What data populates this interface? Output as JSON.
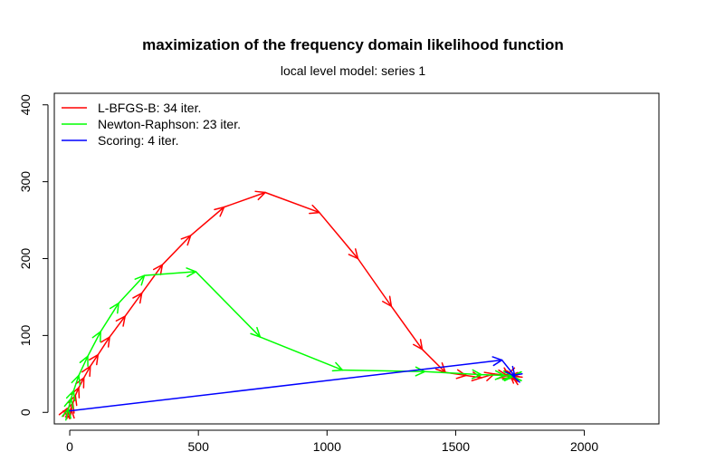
{
  "chart_data": {
    "type": "line",
    "title": "maximization of the frequency domain likelihood function",
    "subtitle": "local level model: series 1",
    "xlabel": "",
    "ylabel": "",
    "xlim": [
      -60,
      2290
    ],
    "ylim": [
      -15,
      415
    ],
    "xticks": [
      0,
      500,
      1000,
      1500,
      2000
    ],
    "yticks": [
      0,
      100,
      200,
      300,
      400
    ],
    "grid": false,
    "legend_position": "top-left",
    "series": [
      {
        "name": "L-BFGS-B: 34 iter.",
        "color": "#ff0000",
        "points": [
          [
            -25,
            -5
          ],
          [
            -10,
            5
          ],
          [
            0,
            -8
          ],
          [
            5,
            5
          ],
          [
            12,
            12
          ],
          [
            22,
            22
          ],
          [
            35,
            32
          ],
          [
            55,
            45
          ],
          [
            80,
            60
          ],
          [
            110,
            75
          ],
          [
            155,
            98
          ],
          [
            215,
            125
          ],
          [
            280,
            155
          ],
          [
            360,
            192
          ],
          [
            470,
            230
          ],
          [
            600,
            267
          ],
          [
            760,
            286
          ],
          [
            970,
            260
          ],
          [
            1120,
            200
          ],
          [
            1250,
            138
          ],
          [
            1370,
            82
          ],
          [
            1460,
            52
          ],
          [
            1540,
            48
          ],
          [
            1600,
            45
          ],
          [
            1650,
            50
          ],
          [
            1700,
            48
          ],
          [
            1730,
            45
          ],
          [
            1720,
            47
          ],
          [
            1710,
            50
          ],
          [
            1700,
            49
          ],
          [
            1710,
            47
          ],
          [
            1720,
            46
          ],
          [
            1710,
            46
          ],
          [
            1705,
            46
          ]
        ]
      },
      {
        "name": "Newton-Raphson: 23 iter.",
        "color": "#00ff00",
        "points": [
          [
            -15,
            -10
          ],
          [
            -5,
            5
          ],
          [
            5,
            18
          ],
          [
            15,
            28
          ],
          [
            35,
            48
          ],
          [
            70,
            73
          ],
          [
            120,
            105
          ],
          [
            190,
            142
          ],
          [
            290,
            178
          ],
          [
            490,
            183
          ],
          [
            740,
            98
          ],
          [
            1060,
            55
          ],
          [
            1380,
            53
          ],
          [
            1600,
            49
          ],
          [
            1690,
            48
          ],
          [
            1720,
            47
          ],
          [
            1725,
            47
          ],
          [
            1720,
            47
          ],
          [
            1725,
            47
          ],
          [
            1720,
            47
          ],
          [
            1725,
            47
          ],
          [
            1720,
            47
          ],
          [
            1725,
            47
          ]
        ]
      },
      {
        "name": "Scoring: 4 iter.",
        "color": "#0000ff",
        "points": [
          [
            0,
            2
          ],
          [
            1680,
            68
          ],
          [
            1730,
            47
          ],
          [
            1720,
            48
          ]
        ]
      }
    ]
  }
}
